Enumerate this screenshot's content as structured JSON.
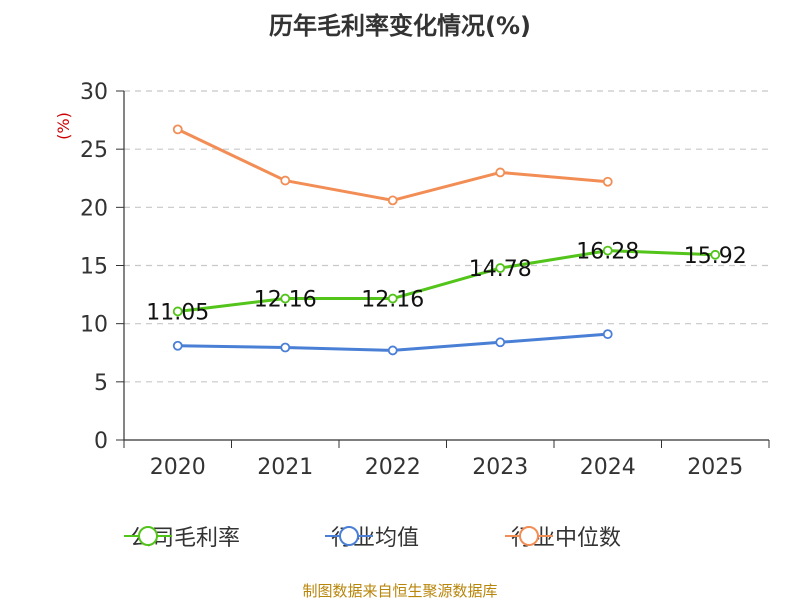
{
  "chart_data": {
    "type": "line",
    "title": "历年毛利率变化情况(%)",
    "ylabel": "(%)",
    "xlabel": "",
    "categories": [
      "2020",
      "2021",
      "2022",
      "2023",
      "2024",
      "2025"
    ],
    "ylim": [
      0,
      30
    ],
    "yticks": [
      0,
      5,
      10,
      15,
      20,
      25,
      30
    ],
    "grid": true,
    "legend_position": "bottom",
    "series": [
      {
        "name": "公司毛利率",
        "color": "#52c41a",
        "values": [
          11.05,
          12.16,
          12.16,
          14.78,
          16.28,
          15.92
        ],
        "labels": [
          "11.05",
          "12.16",
          "12.16",
          "14.78",
          "16.28",
          "15.92"
        ]
      },
      {
        "name": "行业均值",
        "color": "#4a7fd6",
        "values": [
          8.1,
          7.95,
          7.7,
          8.4,
          9.1,
          null
        ]
      },
      {
        "name": "行业中位数",
        "color": "#f28e55",
        "values": [
          26.7,
          22.3,
          20.6,
          23.0,
          22.2,
          null
        ]
      }
    ]
  },
  "source": "制图数据来自恒生聚源数据库"
}
